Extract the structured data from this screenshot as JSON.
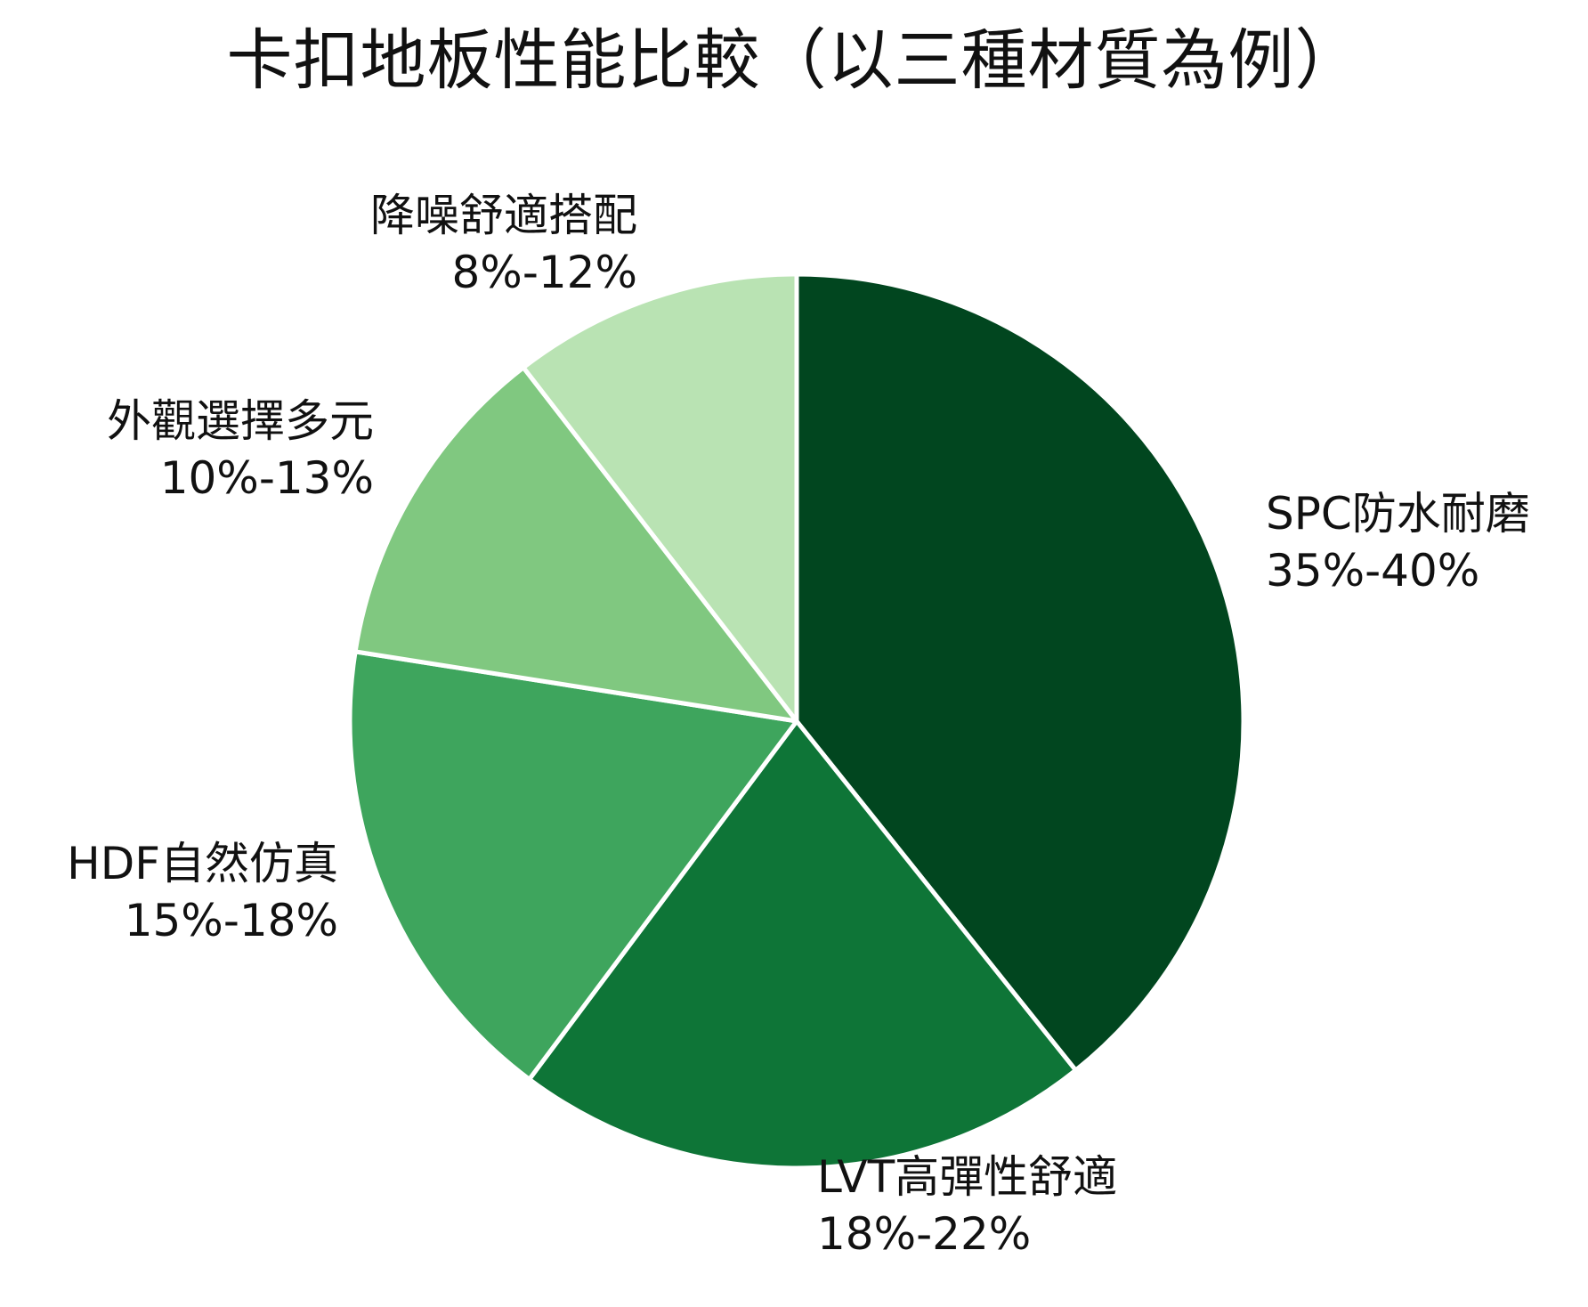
{
  "chart_data": {
    "type": "pie",
    "title": "卡扣地板性能比較（以三種材質為例）",
    "slices": [
      {
        "label": "SPC防水耐磨",
        "range": "35%-40%",
        "value": 37.5,
        "color": "#01461f"
      },
      {
        "label": "LVT高彈性舒適",
        "range": "18%-22%",
        "value": 20,
        "color": "#0e7537"
      },
      {
        "label": "HDF自然仿真",
        "range": "15%-18%",
        "value": 16.5,
        "color": "#3ea55d"
      },
      {
        "label": "外觀選擇多元",
        "range": "10%-13%",
        "value": 11.5,
        "color": "#80c880"
      },
      {
        "label": "降噪舒適搭配",
        "range": "8%-12%",
        "value": 10,
        "color": "#b9e3b3"
      }
    ],
    "start_angle": "12 o'clock",
    "direction": "clockwise",
    "legend": "none"
  }
}
